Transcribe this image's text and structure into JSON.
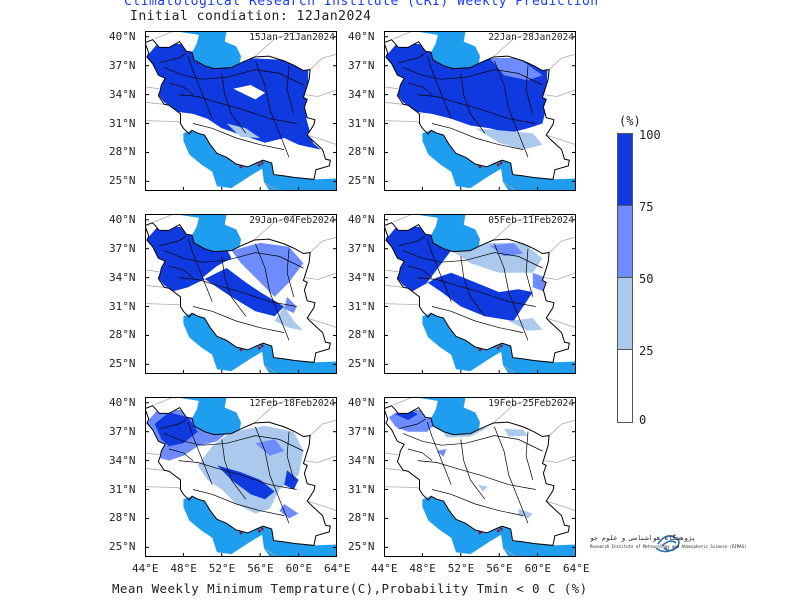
{
  "header": {
    "title": "Climatological Research Institute (CRI) Weekly Prediction",
    "subtitle": "Initial condiation: 12Jan2024"
  },
  "panels": [
    {
      "label": "15Jan-21Jan2024"
    },
    {
      "label": "22Jan-28Jan2024"
    },
    {
      "label": "29Jan-04Feb2024"
    },
    {
      "label": "05Feb-11Feb2024"
    },
    {
      "label": "12Feb-18Feb2024"
    },
    {
      "label": "19Feb-25Feb2024"
    }
  ],
  "lat_labels": [
    "40°N",
    "37°N",
    "34°N",
    "31°N",
    "28°N",
    "25°N"
  ],
  "lon_labels": [
    "44°E",
    "48°E",
    "52°E",
    "56°E",
    "60°E",
    "64°E"
  ],
  "footer": "Mean Weekly Minimum Temprature(C),Probability Tmin < 0 C (%)",
  "legend": {
    "unit": "(%)",
    "ticks": [
      "100",
      "75",
      "50",
      "25",
      "0"
    ],
    "bins": [
      {
        "from": 75,
        "to": 100,
        "color": "#0f3ae0"
      },
      {
        "from": 50,
        "to": 75,
        "color": "#6f8cff"
      },
      {
        "from": 25,
        "to": 50,
        "color": "#aac9ec"
      },
      {
        "from": 0,
        "to": 25,
        "color": "#ffffff"
      }
    ]
  },
  "colors": {
    "sea": "#1f9ef0",
    "high": "#0f3ae0",
    "mid": "#6f8cff",
    "low": "#aac9ec",
    "none": "#ffffff"
  },
  "logo": {
    "name_fa": "پژوهشگاه هواشناسی و علوم جو",
    "name_en": "Research Institute of Meteorology and Atmospheric Science (RIMAS)"
  }
}
